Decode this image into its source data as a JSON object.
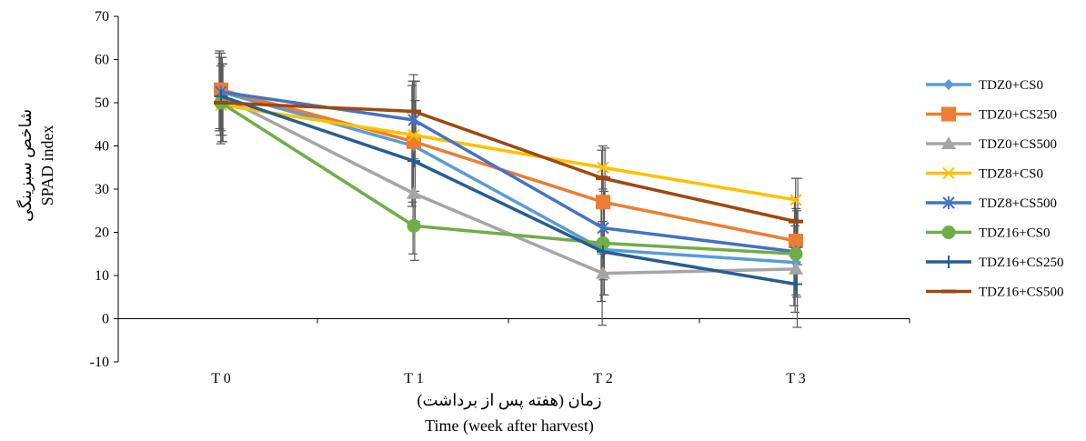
{
  "chart_data": {
    "type": "line",
    "title": "",
    "xlabel_fa": "زمان (هفته پس از برداشت)",
    "xlabel": "Time (week after harvest)",
    "ylabel_fa": "شاخص سبزینگی",
    "ylabel": "SPAD index",
    "categories": [
      "T 0",
      "T 1",
      "T 2",
      "T 3"
    ],
    "ylim": [
      -10,
      70
    ],
    "yticks": [
      -10,
      0,
      10,
      20,
      30,
      40,
      50,
      60,
      70
    ],
    "grid": false,
    "legend": "right",
    "error_bars": true,
    "series": [
      {
        "name": "TDZ0+CS0",
        "color": "#5B9BD5",
        "marker": "diamond",
        "values": [
          52.5,
          40.0,
          16.0,
          13.0
        ],
        "error": [
          9,
          14,
          12,
          10
        ]
      },
      {
        "name": "TDZ0+CS250",
        "color": "#ED7D31",
        "marker": "square",
        "values": [
          53.0,
          41.0,
          27.0,
          18.0
        ],
        "error": [
          9,
          14,
          12,
          10
        ]
      },
      {
        "name": "TDZ0+CS500",
        "color": "#A5A5A5",
        "marker": "triangle",
        "values": [
          51.5,
          29.0,
          10.5,
          11.5
        ],
        "error": [
          9,
          14,
          12,
          10
        ]
      },
      {
        "name": "TDZ8+CS0",
        "color": "#FFC000",
        "marker": "x",
        "values": [
          49.5,
          42.5,
          35.0,
          27.5
        ],
        "error": [
          9,
          14,
          5,
          5
        ]
      },
      {
        "name": "TDZ8+CS500",
        "color": "#4472C4",
        "marker": "star",
        "values": [
          52.5,
          46.0,
          21.0,
          15.5
        ],
        "error": [
          9,
          9,
          12,
          10
        ]
      },
      {
        "name": "TDZ16+CS0",
        "color": "#70AD47",
        "marker": "circle",
        "values": [
          50.0,
          21.5,
          17.5,
          15.0
        ],
        "error": [
          9,
          8,
          12,
          10
        ]
      },
      {
        "name": "TDZ16+CS250",
        "color": "#255E91",
        "marker": "plus",
        "values": [
          51.5,
          36.5,
          15.5,
          8.0
        ],
        "error": [
          9,
          14,
          10,
          10
        ]
      },
      {
        "name": "TDZ16+CS500",
        "color": "#9E480E",
        "marker": "dash",
        "values": [
          50.0,
          48.0,
          32.5,
          22.5
        ],
        "error": [
          9,
          7,
          7,
          10
        ]
      }
    ]
  }
}
